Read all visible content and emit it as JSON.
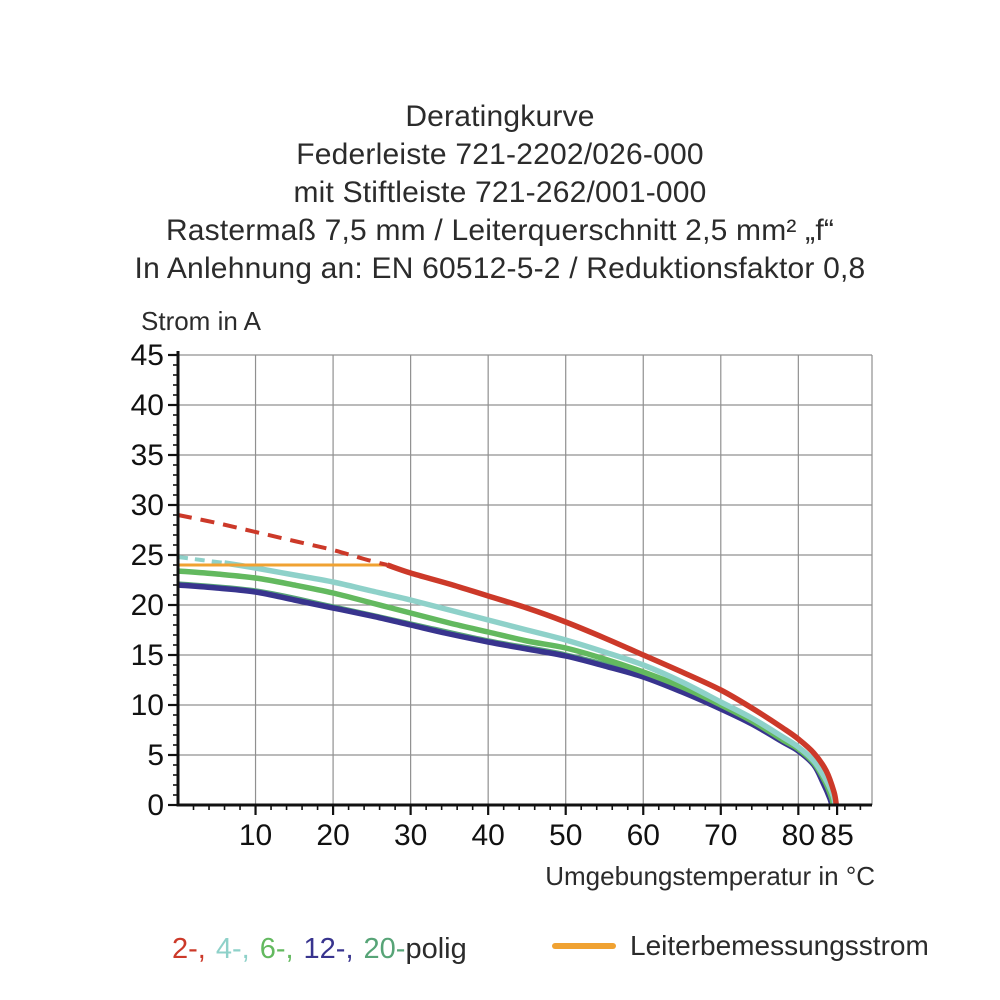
{
  "title": {
    "line1": "Deratingkurve",
    "line2": "Federleiste 721-2202/026-000",
    "line3": "mit Stiftleiste 721-262/001-000",
    "line4": "Rastermaß 7,5 mm / Leiterquerschnitt 2,5 mm² „f“",
    "line5": "In Anlehnung an: EN 60512-5-2 / Reduktionsfaktor 0,8"
  },
  "axes": {
    "y_label": "Strom in A",
    "x_label": "Umgebungstemperatur in °C"
  },
  "legend": {
    "poles": [
      {
        "label": "2-,",
        "color": "#cc3929"
      },
      {
        "label": "4-,",
        "color": "#8ed1c9"
      },
      {
        "label": "6-,",
        "color": "#63b95f"
      },
      {
        "label": "12-,",
        "color": "#38348e"
      },
      {
        "label": "20-",
        "color": "#57a477"
      },
      {
        "label": "polig",
        "color": "#2b2b2b"
      }
    ],
    "rated_current_label": "Leiterbemessungsstrom",
    "rated_current_color": "#f0a232"
  },
  "chart_data": {
    "type": "line",
    "title": "Deratingkurve Federleiste 721-2202/026-000 mit Stiftleiste 721-262/001-000",
    "xlabel": "Umgebungstemperatur in °C",
    "ylabel": "Strom in A",
    "xlim": [
      0,
      89.5
    ],
    "ylim": [
      0,
      45
    ],
    "x_major_ticks": [
      10,
      20,
      30,
      40,
      50,
      60,
      70,
      80,
      85
    ],
    "y_major_ticks": [
      0,
      5,
      10,
      15,
      20,
      25,
      30,
      35,
      40,
      45
    ],
    "x_minor_step": 2,
    "y_minor_step": 1,
    "grid": true,
    "grid_color": "#909090",
    "axis_color": "#111111",
    "tick_label_color": "#111111",
    "series": [
      {
        "name": "20-polig",
        "color": "#57a477",
        "width": 5.5,
        "dash": null,
        "overlaps": "12-polig",
        "points": [
          [
            0,
            22.1
          ],
          [
            10,
            21.4
          ],
          [
            20,
            19.8
          ],
          [
            30,
            18.1
          ],
          [
            40,
            16.4
          ],
          [
            50,
            15.0
          ],
          [
            60,
            12.9
          ],
          [
            70,
            9.8
          ],
          [
            78,
            6.5
          ],
          [
            80,
            5.6
          ],
          [
            82,
            4.2
          ],
          [
            83.3,
            2.3
          ],
          [
            84.2,
            0.7
          ],
          [
            84.4,
            0
          ]
        ]
      },
      {
        "name": "12-polig",
        "color": "#38348e",
        "width": 5.5,
        "dash": null,
        "points": [
          [
            0,
            22.0
          ],
          [
            5,
            21.7
          ],
          [
            10,
            21.3
          ],
          [
            15,
            20.5
          ],
          [
            20,
            19.7
          ],
          [
            25,
            18.9
          ],
          [
            30,
            18.0
          ],
          [
            35,
            17.1
          ],
          [
            40,
            16.3
          ],
          [
            45,
            15.6
          ],
          [
            50,
            14.9
          ],
          [
            55,
            13.9
          ],
          [
            60,
            12.8
          ],
          [
            65,
            11.3
          ],
          [
            70,
            9.6
          ],
          [
            74,
            8.1
          ],
          [
            78,
            6.3
          ],
          [
            80,
            5.4
          ],
          [
            82,
            4.0
          ],
          [
            83.2,
            2.2
          ],
          [
            84.1,
            0.6
          ],
          [
            84.3,
            0
          ]
        ]
      },
      {
        "name": "6-polig",
        "color": "#63b95f",
        "width": 5.5,
        "dash": null,
        "points": [
          [
            0,
            23.4
          ],
          [
            5,
            23.1
          ],
          [
            10,
            22.7
          ],
          [
            15,
            22.0
          ],
          [
            20,
            21.2
          ],
          [
            25,
            20.2
          ],
          [
            30,
            19.2
          ],
          [
            35,
            18.2
          ],
          [
            40,
            17.3
          ],
          [
            45,
            16.4
          ],
          [
            50,
            15.7
          ],
          [
            55,
            14.6
          ],
          [
            60,
            13.3
          ],
          [
            65,
            11.8
          ],
          [
            70,
            10.0
          ],
          [
            74,
            8.4
          ],
          [
            78,
            6.5
          ],
          [
            80,
            5.6
          ],
          [
            82,
            4.2
          ],
          [
            83.4,
            2.4
          ],
          [
            84.3,
            0.7
          ],
          [
            84.5,
            0
          ]
        ]
      },
      {
        "name": "4-polig Anfang gestrichelt",
        "color": "#8ed1c9",
        "width": 4,
        "dash": [
          10,
          7
        ],
        "points": [
          [
            0,
            24.8
          ],
          [
            3,
            24.5
          ],
          [
            6,
            24.2
          ]
        ]
      },
      {
        "name": "4-polig",
        "color": "#8ed1c9",
        "width": 5.5,
        "dash": null,
        "points": [
          [
            6,
            24.2
          ],
          [
            10,
            23.7
          ],
          [
            15,
            23.0
          ],
          [
            20,
            22.3
          ],
          [
            25,
            21.4
          ],
          [
            30,
            20.5
          ],
          [
            35,
            19.5
          ],
          [
            40,
            18.5
          ],
          [
            45,
            17.5
          ],
          [
            50,
            16.5
          ],
          [
            55,
            15.3
          ],
          [
            60,
            14.0
          ],
          [
            65,
            12.3
          ],
          [
            70,
            10.3
          ],
          [
            74,
            8.7
          ],
          [
            78,
            6.8
          ],
          [
            80,
            5.8
          ],
          [
            82,
            4.4
          ],
          [
            83.5,
            2.6
          ],
          [
            84.5,
            0.9
          ],
          [
            84.7,
            0
          ]
        ]
      },
      {
        "name": "Leiterbemessungsstrom",
        "color": "#f0a232",
        "width": 3,
        "dash": null,
        "points": [
          [
            0,
            24
          ],
          [
            27,
            24
          ]
        ]
      },
      {
        "name": "2-polig Derating gestrichelt",
        "color": "#cc3929",
        "width": 4,
        "dash": [
          14,
          9
        ],
        "points": [
          [
            0,
            29
          ],
          [
            5,
            28.2
          ],
          [
            10,
            27.3
          ],
          [
            15,
            26.4
          ],
          [
            20,
            25.5
          ],
          [
            24,
            24.6
          ],
          [
            27,
            24
          ]
        ]
      },
      {
        "name": "2-polig",
        "color": "#cc3929",
        "width": 5.5,
        "dash": null,
        "points": [
          [
            27,
            24
          ],
          [
            30,
            23.2
          ],
          [
            35,
            22.1
          ],
          [
            40,
            20.9
          ],
          [
            45,
            19.7
          ],
          [
            50,
            18.3
          ],
          [
            55,
            16.7
          ],
          [
            60,
            15.0
          ],
          [
            65,
            13.3
          ],
          [
            70,
            11.5
          ],
          [
            74,
            9.7
          ],
          [
            78,
            7.7
          ],
          [
            80,
            6.6
          ],
          [
            82,
            5.2
          ],
          [
            83.6,
            3.4
          ],
          [
            84.6,
            1.3
          ],
          [
            84.9,
            0
          ]
        ]
      }
    ]
  }
}
